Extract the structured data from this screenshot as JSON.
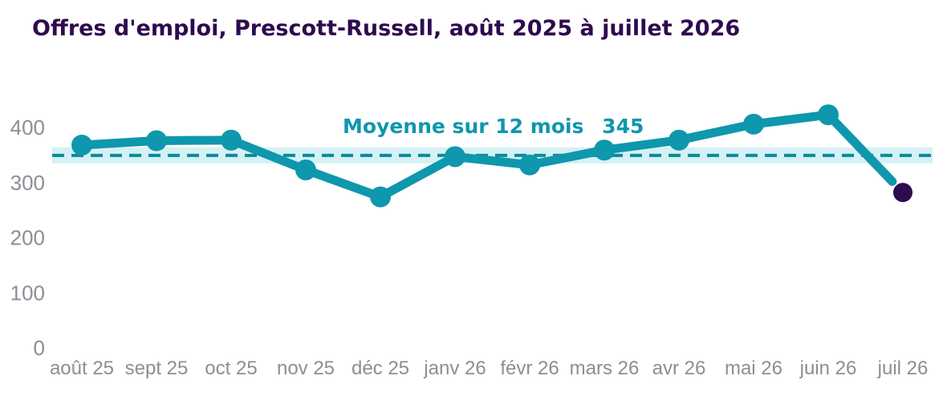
{
  "title": "Offres d'emploi, Prescott-Russell, août 2025 à juillet 2026",
  "chart_data": {
    "type": "line",
    "categories": [
      "août 25",
      "sept 25",
      "oct 25",
      "nov 25",
      "déc 25",
      "janv 26",
      "févr 26",
      "mars 26",
      "avr 26",
      "mai 26",
      "juin 26",
      "juil 26"
    ],
    "values": [
      368,
      376,
      377,
      323,
      274,
      347,
      332,
      359,
      377,
      406,
      423,
      282
    ],
    "ylim": [
      0,
      400
    ],
    "yticks": [
      0,
      100,
      200,
      300,
      400
    ],
    "average": {
      "label": "Moyenne sur 12 mois",
      "value": 345,
      "value_label": "345"
    },
    "grid": false,
    "colors": {
      "line": "#0e97ad",
      "last_point": "#2e0a4f",
      "average_line": "#0e8a9a",
      "average_band": "#d4f1f4",
      "average_label": "#0e97ad",
      "title": "#2e0a4f",
      "axis_text": "#8a8f96"
    }
  }
}
